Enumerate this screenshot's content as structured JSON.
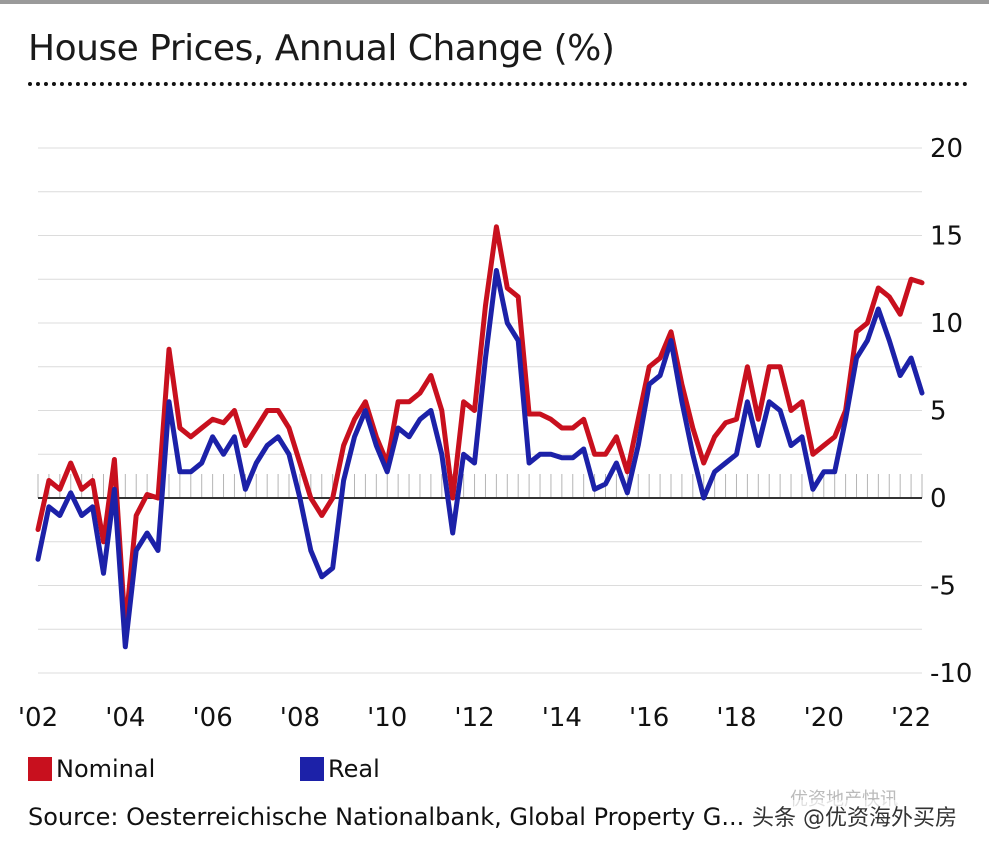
{
  "chart_data": {
    "type": "line",
    "title": "House Prices, Annual Change (%)",
    "xlabel": "",
    "ylabel": "",
    "ylim": [
      -10,
      20
    ],
    "xlim": [
      2002,
      2022.25
    ],
    "y_ticks": [
      20,
      15,
      10,
      5,
      0,
      -5,
      -10
    ],
    "y_tick_labels": [
      "20",
      "15",
      "10",
      "5",
      "0",
      "-5",
      "-10"
    ],
    "x_ticks": [
      2002,
      2004,
      2006,
      2008,
      2010,
      2012,
      2014,
      2016,
      2018,
      2020,
      2022
    ],
    "x_tick_labels": [
      "'02",
      "'04",
      "'06",
      "'08",
      "'10",
      "'12",
      "'14",
      "'16",
      "'18",
      "'20",
      "'22"
    ],
    "grid": true,
    "legend_position": "bottom-left",
    "series": [
      {
        "name": "Nominal",
        "color": "#c8101e",
        "points": [
          [
            2002.0,
            -1.8
          ],
          [
            2002.25,
            1.0
          ],
          [
            2002.5,
            0.5
          ],
          [
            2002.75,
            2.0
          ],
          [
            2003.0,
            0.5
          ],
          [
            2003.25,
            1.0
          ],
          [
            2003.5,
            -2.5
          ],
          [
            2003.75,
            2.2
          ],
          [
            2004.0,
            -7.5
          ],
          [
            2004.25,
            -1.0
          ],
          [
            2004.5,
            0.2
          ],
          [
            2004.75,
            0.0
          ],
          [
            2005.0,
            8.5
          ],
          [
            2005.25,
            4.0
          ],
          [
            2005.5,
            3.5
          ],
          [
            2005.75,
            4.0
          ],
          [
            2006.0,
            4.5
          ],
          [
            2006.25,
            4.3
          ],
          [
            2006.5,
            5.0
          ],
          [
            2006.75,
            3.0
          ],
          [
            2007.0,
            4.0
          ],
          [
            2007.25,
            5.0
          ],
          [
            2007.5,
            5.0
          ],
          [
            2007.75,
            4.0
          ],
          [
            2008.0,
            2.0
          ],
          [
            2008.25,
            0.0
          ],
          [
            2008.5,
            -1.0
          ],
          [
            2008.75,
            0.0
          ],
          [
            2009.0,
            3.0
          ],
          [
            2009.25,
            4.5
          ],
          [
            2009.5,
            5.5
          ],
          [
            2009.75,
            3.5
          ],
          [
            2010.0,
            2.0
          ],
          [
            2010.25,
            5.5
          ],
          [
            2010.5,
            5.5
          ],
          [
            2010.75,
            6.0
          ],
          [
            2011.0,
            7.0
          ],
          [
            2011.25,
            5.0
          ],
          [
            2011.5,
            0.0
          ],
          [
            2011.75,
            5.5
          ],
          [
            2012.0,
            5.0
          ],
          [
            2012.25,
            11.0
          ],
          [
            2012.5,
            15.5
          ],
          [
            2012.75,
            12.0
          ],
          [
            2013.0,
            11.5
          ],
          [
            2013.25,
            4.8
          ],
          [
            2013.5,
            4.8
          ],
          [
            2013.75,
            4.5
          ],
          [
            2014.0,
            4.0
          ],
          [
            2014.25,
            4.0
          ],
          [
            2014.5,
            4.5
          ],
          [
            2014.75,
            2.5
          ],
          [
            2015.0,
            2.5
          ],
          [
            2015.25,
            3.5
          ],
          [
            2015.5,
            1.5
          ],
          [
            2015.75,
            4.5
          ],
          [
            2016.0,
            7.5
          ],
          [
            2016.25,
            8.0
          ],
          [
            2016.5,
            9.5
          ],
          [
            2016.75,
            6.5
          ],
          [
            2017.0,
            4.0
          ],
          [
            2017.25,
            2.0
          ],
          [
            2017.5,
            3.5
          ],
          [
            2017.75,
            4.3
          ],
          [
            2018.0,
            4.5
          ],
          [
            2018.25,
            7.5
          ],
          [
            2018.5,
            4.5
          ],
          [
            2018.75,
            7.5
          ],
          [
            2019.0,
            7.5
          ],
          [
            2019.25,
            5.0
          ],
          [
            2019.5,
            5.5
          ],
          [
            2019.75,
            2.5
          ],
          [
            2020.0,
            3.0
          ],
          [
            2020.25,
            3.5
          ],
          [
            2020.5,
            5.0
          ],
          [
            2020.75,
            9.5
          ],
          [
            2021.0,
            10.0
          ],
          [
            2021.25,
            12.0
          ],
          [
            2021.5,
            11.5
          ],
          [
            2021.75,
            10.5
          ],
          [
            2022.0,
            12.5
          ],
          [
            2022.25,
            12.3
          ]
        ]
      },
      {
        "name": "Real",
        "color": "#1c21a8",
        "points": [
          [
            2002.0,
            -3.5
          ],
          [
            2002.25,
            -0.5
          ],
          [
            2002.5,
            -1.0
          ],
          [
            2002.75,
            0.3
          ],
          [
            2003.0,
            -1.0
          ],
          [
            2003.25,
            -0.5
          ],
          [
            2003.5,
            -4.3
          ],
          [
            2003.75,
            0.5
          ],
          [
            2004.0,
            -8.5
          ],
          [
            2004.25,
            -3.0
          ],
          [
            2004.5,
            -2.0
          ],
          [
            2004.75,
            -3.0
          ],
          [
            2005.0,
            5.5
          ],
          [
            2005.25,
            1.5
          ],
          [
            2005.5,
            1.5
          ],
          [
            2005.75,
            2.0
          ],
          [
            2006.0,
            3.5
          ],
          [
            2006.25,
            2.5
          ],
          [
            2006.5,
            3.5
          ],
          [
            2006.75,
            0.5
          ],
          [
            2007.0,
            2.0
          ],
          [
            2007.25,
            3.0
          ],
          [
            2007.5,
            3.5
          ],
          [
            2007.75,
            2.5
          ],
          [
            2008.0,
            0.0
          ],
          [
            2008.25,
            -3.0
          ],
          [
            2008.5,
            -4.5
          ],
          [
            2008.75,
            -4.0
          ],
          [
            2009.0,
            1.0
          ],
          [
            2009.25,
            3.5
          ],
          [
            2009.5,
            5.0
          ],
          [
            2009.75,
            3.0
          ],
          [
            2010.0,
            1.5
          ],
          [
            2010.25,
            4.0
          ],
          [
            2010.5,
            3.5
          ],
          [
            2010.75,
            4.5
          ],
          [
            2011.0,
            5.0
          ],
          [
            2011.25,
            2.5
          ],
          [
            2011.5,
            -2.0
          ],
          [
            2011.75,
            2.5
          ],
          [
            2012.0,
            2.0
          ],
          [
            2012.25,
            8.0
          ],
          [
            2012.5,
            13.0
          ],
          [
            2012.75,
            10.0
          ],
          [
            2013.0,
            9.0
          ],
          [
            2013.25,
            2.0
          ],
          [
            2013.5,
            2.5
          ],
          [
            2013.75,
            2.5
          ],
          [
            2014.0,
            2.3
          ],
          [
            2014.25,
            2.3
          ],
          [
            2014.5,
            2.8
          ],
          [
            2014.75,
            0.5
          ],
          [
            2015.0,
            0.8
          ],
          [
            2015.25,
            2.0
          ],
          [
            2015.5,
            0.3
          ],
          [
            2015.75,
            3.0
          ],
          [
            2016.0,
            6.5
          ],
          [
            2016.25,
            7.0
          ],
          [
            2016.5,
            9.0
          ],
          [
            2016.75,
            5.5
          ],
          [
            2017.0,
            2.5
          ],
          [
            2017.25,
            0.0
          ],
          [
            2017.5,
            1.5
          ],
          [
            2017.75,
            2.0
          ],
          [
            2018.0,
            2.5
          ],
          [
            2018.25,
            5.5
          ],
          [
            2018.5,
            3.0
          ],
          [
            2018.75,
            5.5
          ],
          [
            2019.0,
            5.0
          ],
          [
            2019.25,
            3.0
          ],
          [
            2019.5,
            3.5
          ],
          [
            2019.75,
            0.5
          ],
          [
            2020.0,
            1.5
          ],
          [
            2020.25,
            1.5
          ],
          [
            2020.5,
            4.5
          ],
          [
            2020.75,
            8.0
          ],
          [
            2021.0,
            9.0
          ],
          [
            2021.25,
            10.8
          ],
          [
            2021.5,
            9.0
          ],
          [
            2021.75,
            7.0
          ],
          [
            2022.0,
            8.0
          ],
          [
            2022.25,
            6.0
          ]
        ]
      }
    ]
  },
  "source": "Source: Oesterreichische Nationalbank, Global Property G...",
  "watermark": "头条 @优资海外买房",
  "watermark_faint": "优资地产快讯"
}
